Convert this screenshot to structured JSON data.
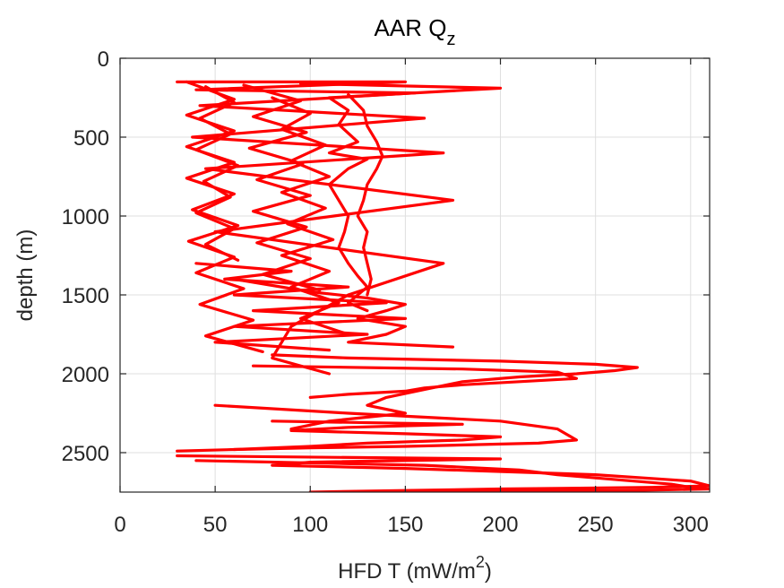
{
  "chart_data": {
    "type": "line",
    "title": "AAR Q",
    "title_subscript": "z",
    "xlabel": "HFD T (mW/m",
    "xlabel_superscript": "2",
    "xlabel_suffix": ")",
    "ylabel": "depth (m)",
    "xlim": [
      0,
      310
    ],
    "ylim": [
      0,
      2750
    ],
    "y_reversed": true,
    "grid": true,
    "xticks": [
      0,
      50,
      100,
      150,
      200,
      250,
      300
    ],
    "yticks": [
      0,
      500,
      1000,
      1500,
      2000,
      2500
    ],
    "xtick_labels": [
      "0",
      "50",
      "100",
      "150",
      "200",
      "250",
      "300"
    ],
    "ytick_labels": [
      "0",
      "500",
      "1000",
      "1500",
      "2000",
      "2500"
    ],
    "line_color": "#ff0000",
    "series": [
      {
        "x": [
          30,
          150,
          40,
          155,
          42,
          160,
          38,
          170,
          45,
          175,
          50,
          170,
          120,
          90,
          80,
          110
        ],
        "y": [
          150,
          150,
          200,
          220,
          300,
          380,
          500,
          600,
          700,
          900,
          1100,
          1300,
          1500,
          1700,
          1900,
          2000
        ]
      },
      {
        "x": [
          35,
          60,
          35,
          60,
          35,
          60,
          35,
          60,
          38,
          62,
          36,
          60,
          40,
          65,
          42,
          70,
          45,
          75
        ],
        "y": [
          150,
          260,
          360,
          460,
          560,
          660,
          760,
          860,
          960,
          1060,
          1160,
          1260,
          1360,
          1460,
          1560,
          1660,
          1760,
          1860
        ]
      },
      {
        "x": [
          80,
          100,
          85,
          108,
          90,
          110,
          85,
          108,
          88,
          112,
          85,
          110,
          90,
          115,
          95,
          120
        ],
        "y": [
          250,
          350,
          450,
          550,
          650,
          750,
          850,
          950,
          1050,
          1150,
          1250,
          1350,
          1450,
          1550,
          1650,
          1750
        ]
      },
      {
        "x": [
          95,
          200,
          110,
          120,
          115,
          125,
          110,
          130,
          120,
          110,
          115,
          120,
          118,
          115,
          120,
          125,
          130,
          125,
          120,
          130
        ],
        "y": [
          160,
          190,
          250,
          330,
          420,
          530,
          600,
          640,
          700,
          800,
          900,
          1000,
          1100,
          1200,
          1300,
          1380,
          1450,
          1500,
          1550,
          1600
        ]
      },
      {
        "x": [
          120,
          128,
          130,
          135,
          138,
          135,
          130,
          128,
          125,
          130,
          128,
          130,
          132,
          130
        ],
        "y": [
          230,
          330,
          430,
          530,
          620,
          700,
          800,
          900,
          1000,
          1100,
          1200,
          1300,
          1400,
          1500
        ]
      },
      {
        "x": [
          60,
          100,
          130,
          150,
          140,
          125,
          150,
          140,
          120,
          175
        ],
        "y": [
          1400,
          1480,
          1520,
          1560,
          1600,
          1650,
          1700,
          1750,
          1800,
          1830
        ]
      },
      {
        "x": [
          80,
          120,
          200,
          250,
          272,
          260,
          240,
          210,
          180,
          160,
          140,
          130,
          150,
          110,
          90
        ],
        "y": [
          1880,
          1900,
          1920,
          1940,
          1960,
          1980,
          2000,
          2020,
          2050,
          2100,
          2150,
          2200,
          2250,
          2300,
          2350
        ]
      },
      {
        "x": [
          70,
          180,
          230,
          240,
          210,
          180,
          160,
          150,
          120,
          100
        ],
        "y": [
          1950,
          1970,
          1990,
          2030,
          2050,
          2070,
          2090,
          2110,
          2130,
          2150
        ]
      },
      {
        "x": [
          50,
          120,
          200,
          230,
          240,
          220,
          150,
          100,
          60,
          30
        ],
        "y": [
          2200,
          2250,
          2300,
          2350,
          2420,
          2440,
          2460,
          2470,
          2480,
          2490
        ]
      },
      {
        "x": [
          80,
          180,
          120,
          90,
          150,
          200,
          180,
          130,
          100,
          60
        ],
        "y": [
          2300,
          2320,
          2340,
          2360,
          2380,
          2400,
          2420,
          2440,
          2460,
          2480
        ]
      },
      {
        "x": [
          30,
          200,
          100,
          80,
          150,
          250,
          300,
          310,
          280,
          200,
          150,
          100
        ],
        "y": [
          2520,
          2540,
          2560,
          2580,
          2600,
          2640,
          2680,
          2710,
          2720,
          2730,
          2740,
          2750
        ]
      },
      {
        "x": [
          40,
          160,
          210,
          230,
          250,
          270,
          290,
          300,
          310,
          270,
          200,
          120,
          90
        ],
        "y": [
          2550,
          2580,
          2610,
          2640,
          2660,
          2680,
          2700,
          2720,
          2730,
          2740,
          2745,
          2750,
          2760
        ]
      },
      {
        "x": [
          45,
          60,
          42,
          58,
          40,
          62,
          44,
          58,
          40,
          60,
          45,
          62
        ],
        "y": [
          180,
          280,
          380,
          480,
          580,
          680,
          780,
          880,
          980,
          1080,
          1180,
          1280
        ]
      },
      {
        "x": [
          65,
          95,
          70,
          98,
          68,
          96,
          72,
          100,
          70,
          98,
          72,
          100,
          75,
          105
        ],
        "y": [
          170,
          270,
          370,
          470,
          570,
          670,
          770,
          870,
          970,
          1070,
          1170,
          1270,
          1370,
          1470
        ]
      },
      {
        "x": [
          40,
          90,
          55,
          120,
          60,
          140,
          70,
          150,
          60,
          130,
          50,
          110
        ],
        "y": [
          1300,
          1350,
          1400,
          1450,
          1500,
          1550,
          1600,
          1650,
          1700,
          1750,
          1800,
          1850
        ]
      }
    ]
  }
}
